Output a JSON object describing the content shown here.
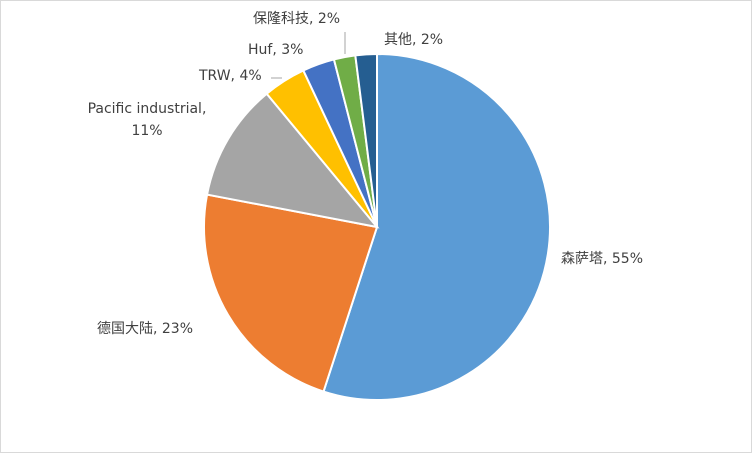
{
  "chart_data": {
    "type": "pie",
    "title": "",
    "start_angle_deg": 0,
    "direction": "clockwise",
    "legend": "none",
    "slices": [
      {
        "name": "森萨塔",
        "value": 55,
        "label": "森萨塔, 55%",
        "color": "#5b9bd5"
      },
      {
        "name": "德国大陆",
        "value": 23,
        "label": "德国大陆, 23%",
        "color": "#ed7d31"
      },
      {
        "name": "Pacific industrial",
        "value": 11,
        "label": [
          "Pacific industrial,",
          "11%"
        ],
        "color": "#a5a5a5"
      },
      {
        "name": "TRW",
        "value": 4,
        "label": "TRW, 4%",
        "color": "#ffc000"
      },
      {
        "name": "Huf",
        "value": 3,
        "label": "Huf, 3%",
        "color": "#4472c4"
      },
      {
        "name": "保隆科技",
        "value": 2,
        "label": "保隆科技, 2%",
        "color": "#70ad47"
      },
      {
        "name": "其他",
        "value": 2,
        "label": "其他, 2%",
        "color": "#255e91"
      }
    ]
  }
}
